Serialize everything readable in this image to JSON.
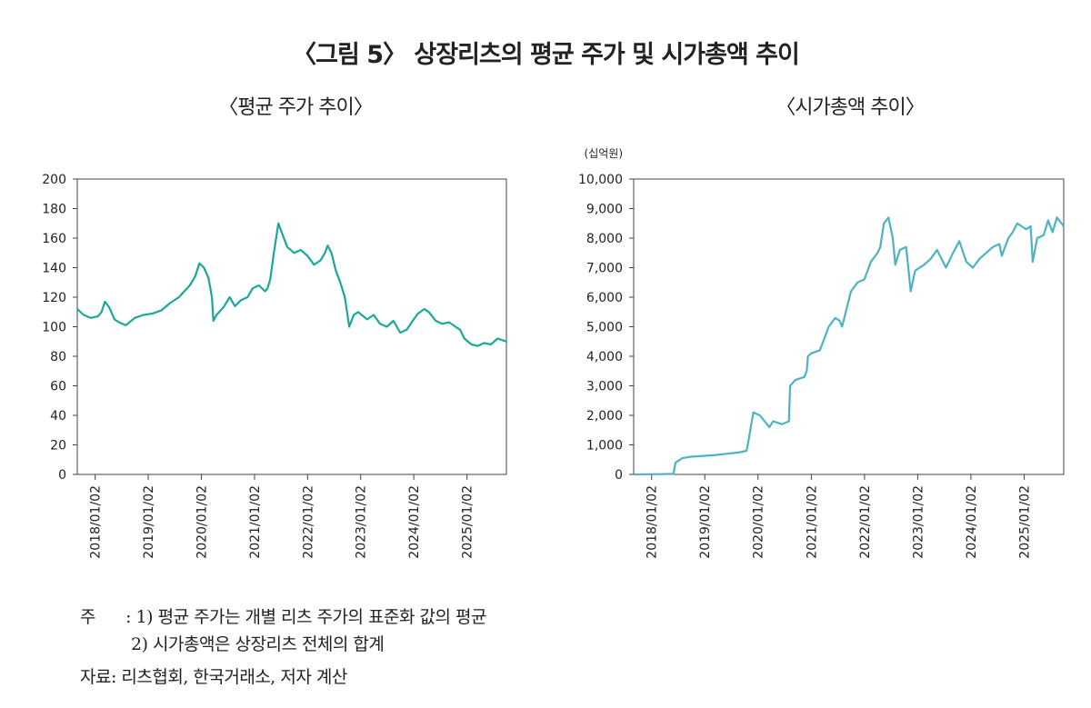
{
  "figure": {
    "title": "〈그림 5〉 상장리츠의 평균 주가 및 시가총액 추이",
    "note_prefix": "주",
    "note_colon": ":",
    "note1": "1) 평균 주가는 개별 리츠 주가의 표준화 값의 평균",
    "note2": "2) 시가총액은 상장리츠 전체의 합계",
    "source": "자료: 리츠협회, 한국거래소, 저자 계산"
  },
  "chart_data": [
    {
      "type": "line",
      "title": "〈평균 주가 추이〉",
      "ylabel": "",
      "ylim": [
        0,
        200
      ],
      "yticks": [
        "0",
        "20",
        "40",
        "60",
        "80",
        "100",
        "120",
        "140",
        "160",
        "180",
        "200"
      ],
      "xlim": [
        "2017-09-01",
        "2025-09-30"
      ],
      "xticks": [
        "2018/01/02",
        "2019/01/02",
        "2020/01/02",
        "2021/01/02",
        "2022/01/02",
        "2023/01/02",
        "2024/01/02",
        "2025/01/02"
      ],
      "color": "#1aa89a",
      "series": [
        {
          "x": [
            "2017-09-01",
            "2017-10-15",
            "2017-12-01",
            "2018-01-20",
            "2018-02-15",
            "2018-03-10",
            "2018-04-10",
            "2018-05-15",
            "2018-06-15",
            "2018-08-01",
            "2018-10-01",
            "2018-12-01",
            "2019-02-01",
            "2019-04-01",
            "2019-06-01",
            "2019-08-01",
            "2019-10-15",
            "2019-11-20",
            "2019-12-20",
            "2020-01-20",
            "2020-02-20",
            "2020-03-15",
            "2020-03-25",
            "2020-04-15",
            "2020-06-01",
            "2020-07-15",
            "2020-08-20",
            "2020-10-01",
            "2020-11-15",
            "2020-12-20",
            "2021-02-01",
            "2021-03-15",
            "2021-04-01",
            "2021-04-20",
            "2021-05-15",
            "2021-06-15",
            "2021-07-15",
            "2021-08-15",
            "2021-10-01",
            "2021-11-15",
            "2022-01-01",
            "2022-02-15",
            "2022-04-01",
            "2022-05-01",
            "2022-05-20",
            "2022-06-15",
            "2022-07-15",
            "2022-08-15",
            "2022-09-15",
            "2022-10-15",
            "2022-11-15",
            "2022-12-15",
            "2023-02-15",
            "2023-04-01",
            "2023-05-15",
            "2023-07-01",
            "2023-08-15",
            "2023-10-01",
            "2023-11-15",
            "2024-01-01",
            "2024-02-01",
            "2024-03-15",
            "2024-04-15",
            "2024-06-01",
            "2024-07-15",
            "2024-09-01",
            "2024-10-15",
            "2024-11-15",
            "2024-12-15",
            "2025-02-01",
            "2025-03-15",
            "2025-05-01",
            "2025-06-15",
            "2025-08-01",
            "2025-09-30"
          ],
          "values": [
            112,
            108,
            106,
            107,
            110,
            117,
            113,
            105,
            103,
            101,
            106,
            108,
            109,
            111,
            116,
            120,
            128,
            134,
            143,
            140,
            133,
            120,
            104,
            108,
            113,
            120,
            114,
            118,
            120,
            126,
            128,
            124,
            126,
            132,
            150,
            170,
            162,
            154,
            150,
            152,
            148,
            142,
            145,
            150,
            155,
            150,
            138,
            130,
            120,
            100,
            108,
            110,
            105,
            108,
            102,
            100,
            104,
            96,
            98,
            105,
            109,
            112,
            110,
            104,
            102,
            103,
            100,
            98,
            92,
            88,
            87,
            89,
            88,
            92,
            90
          ]
        }
      ]
    },
    {
      "type": "line",
      "title": "〈시가총액 추이〉",
      "ylabel": "(십억원)",
      "ylim": [
        0,
        10000
      ],
      "yticks": [
        "0",
        "1,000",
        "2,000",
        "3,000",
        "4,000",
        "5,000",
        "6,000",
        "7,000",
        "8,000",
        "9,000",
        "10,000"
      ],
      "xlim": [
        "2017-09-01",
        "2025-09-30"
      ],
      "xticks": [
        "2018/01/02",
        "2019/01/02",
        "2020/01/02",
        "2021/01/02",
        "2022/01/02",
        "2023/01/02",
        "2024/01/02",
        "2025/01/02"
      ],
      "color": "#4db3c2",
      "series": [
        {
          "x": [
            "2017-09-01",
            "2018-03-01",
            "2018-06-01",
            "2018-06-15",
            "2018-08-01",
            "2018-10-01",
            "2018-12-01",
            "2019-03-01",
            "2019-06-01",
            "2019-09-01",
            "2019-10-15",
            "2019-10-20",
            "2019-12-01",
            "2020-01-15",
            "2020-03-20",
            "2020-04-15",
            "2020-06-15",
            "2020-08-01",
            "2020-08-10",
            "2020-09-15",
            "2020-11-15",
            "2020-12-01",
            "2020-12-10",
            "2021-01-01",
            "2021-03-01",
            "2021-04-01",
            "2021-05-01",
            "2021-06-15",
            "2021-07-15",
            "2021-08-01",
            "2021-10-01",
            "2021-11-15",
            "2022-01-01",
            "2022-02-15",
            "2022-04-01",
            "2022-04-20",
            "2022-05-15",
            "2022-06-15",
            "2022-07-15",
            "2022-08-01",
            "2022-09-01",
            "2022-10-15",
            "2022-11-15",
            "2022-12-15",
            "2023-02-15",
            "2023-04-01",
            "2023-05-15",
            "2023-07-15",
            "2023-09-01",
            "2023-10-15",
            "2023-12-01",
            "2024-01-15",
            "2024-03-01",
            "2024-04-15",
            "2024-06-01",
            "2024-07-15",
            "2024-08-01",
            "2024-09-15",
            "2024-10-15",
            "2024-11-15",
            "2024-12-15",
            "2025-01-15",
            "2025-02-15",
            "2025-03-01",
            "2025-04-01",
            "2025-05-15",
            "2025-06-15",
            "2025-07-15",
            "2025-08-15",
            "2025-09-30"
          ],
          "values": [
            0,
            10,
            20,
            400,
            550,
            600,
            620,
            650,
            700,
            750,
            800,
            900,
            2100,
            2000,
            1600,
            1800,
            1700,
            1800,
            3000,
            3200,
            3300,
            3500,
            4000,
            4100,
            4200,
            4600,
            5000,
            5300,
            5200,
            5000,
            6200,
            6500,
            6600,
            7200,
            7500,
            7700,
            8500,
            8700,
            8000,
            7100,
            7600,
            7700,
            6200,
            6900,
            7100,
            7300,
            7600,
            7000,
            7500,
            7900,
            7200,
            7000,
            7300,
            7500,
            7700,
            7800,
            7400,
            8000,
            8200,
            8500,
            8400,
            8300,
            8400,
            7200,
            8000,
            8100,
            8600,
            8200,
            8700,
            8400
          ]
        }
      ]
    }
  ]
}
